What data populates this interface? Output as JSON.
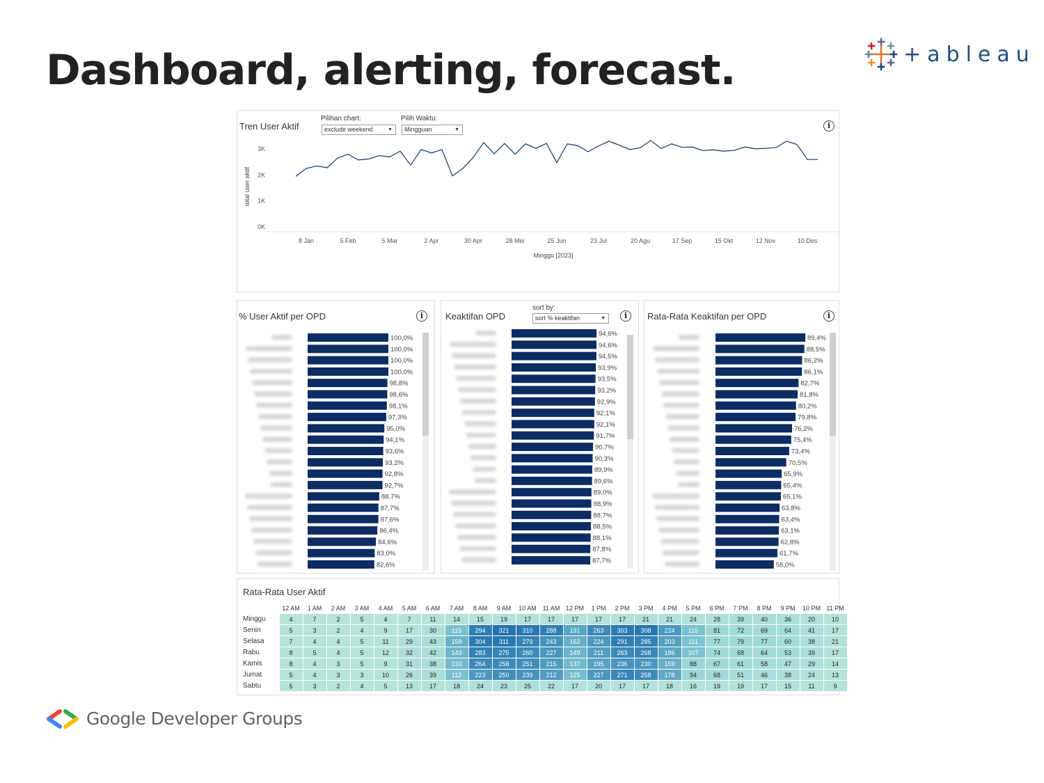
{
  "slide_title": "Dashboard, alerting, forecast.",
  "tableau_logo_text": "+ableau",
  "footer_brand": "Google Developer Groups",
  "colors": {
    "bar": "#0c2c63",
    "line": "#24446d",
    "accent_blue": "#1f4e79"
  },
  "trend": {
    "title": "Tren User Aktif",
    "chart_label": "Pilihan chart:",
    "chart_value": "exclude weekend",
    "time_label": "Pilih Waktu:",
    "time_value": "Mingguan",
    "info_icon": "i"
  },
  "chart_data": [
    {
      "type": "line",
      "title": "Tren User Aktif",
      "xlabel": "Minggu [2023]",
      "ylabel": "total user aktif",
      "yticks": [
        "3K",
        "2K",
        "1K",
        "0K"
      ],
      "ylim": [
        0,
        3300
      ],
      "xticks": [
        "8 Jan",
        "5 Feb",
        "5 Mar",
        "2 Apr",
        "30 Apr",
        "28 Mei",
        "25 Jun",
        "23 Jul",
        "20 Agu",
        "17 Sep",
        "15 Okt",
        "12 Nov",
        "10 Des"
      ],
      "x": [
        "1 Jan",
        "8 Jan",
        "15 Jan",
        "22 Jan",
        "29 Jan",
        "5 Feb",
        "12 Feb",
        "19 Feb",
        "26 Feb",
        "5 Mar",
        "12 Mar",
        "19 Mar",
        "26 Mar",
        "2 Apr",
        "9 Apr",
        "16 Apr",
        "23 Apr",
        "30 Apr",
        "7 Mei",
        "14 Mei",
        "21 Mei",
        "28 Mei",
        "4 Jun",
        "11 Jun",
        "18 Jun",
        "25 Jun",
        "2 Jul",
        "9 Jul",
        "16 Jul",
        "23 Jul",
        "30 Jul",
        "6 Agu",
        "13 Agu",
        "20 Agu",
        "27 Agu",
        "3 Sep",
        "10 Sep",
        "17 Sep",
        "24 Sep",
        "1 Okt",
        "8 Okt",
        "15 Okt",
        "22 Okt",
        "29 Okt",
        "5 Nov",
        "12 Nov",
        "19 Nov",
        "26 Nov",
        "3 Des",
        "10 Des",
        "17 Des"
      ],
      "values": [
        1950,
        2250,
        2350,
        2280,
        2650,
        2800,
        2580,
        2620,
        2750,
        2700,
        2920,
        2380,
        2980,
        2850,
        2980,
        1970,
        2250,
        2680,
        3250,
        2820,
        3220,
        2800,
        3200,
        3030,
        3220,
        2480,
        3200,
        3130,
        2900,
        3120,
        3300,
        3150,
        2980,
        3050,
        3330,
        3020,
        3200,
        3070,
        3080,
        2940,
        2970,
        2920,
        2950,
        3080,
        3010,
        3030,
        3060,
        3300,
        3180,
        2600,
        2600
      ]
    },
    {
      "type": "bar",
      "title": "% User Aktif per OPD",
      "values": [
        100.0,
        100.0,
        100.0,
        100.0,
        98.8,
        98.6,
        98.1,
        97.3,
        95.0,
        94.1,
        93.6,
        93.2,
        92.8,
        92.7,
        88.7,
        87.7,
        87.6,
        86.4,
        84.6,
        83.0,
        82.6
      ],
      "labels": [
        "100,0%",
        "100,0%",
        "100,0%",
        "100,0%",
        "98,8%",
        "98,6%",
        "98,1%",
        "97,3%",
        "95,0%",
        "94,1%",
        "93,6%",
        "93,2%",
        "92,8%",
        "92,7%",
        "88,7%",
        "87,7%",
        "87,6%",
        "86,4%",
        "84,6%",
        "83,0%",
        "82,6%"
      ]
    },
    {
      "type": "bar",
      "title": "Keaktifan OPD",
      "values": [
        94.6,
        94.6,
        94.5,
        93.9,
        93.5,
        93.2,
        92.9,
        92.1,
        92.1,
        91.7,
        90.7,
        90.3,
        89.9,
        89.6,
        89.0,
        88.9,
        88.7,
        88.5,
        88.1,
        87.8,
        87.7
      ],
      "labels": [
        "94,6%",
        "94,6%",
        "94,5%",
        "93,9%",
        "93,5%",
        "93,2%",
        "92,9%",
        "92,1%",
        "92,1%",
        "91,7%",
        "90,7%",
        "90,3%",
        "89,9%",
        "89,6%",
        "89,0%",
        "88,9%",
        "88,7%",
        "88,5%",
        "88,1%",
        "87,8%",
        "87,7%"
      ]
    },
    {
      "type": "bar",
      "title": "Rata-Rata Keaktifan per OPD",
      "values": [
        89.4,
        88.5,
        86.2,
        86.1,
        82.7,
        81.8,
        80.2,
        79.8,
        76.2,
        75.4,
        73.4,
        70.5,
        65.9,
        65.4,
        65.1,
        63.8,
        63.4,
        63.1,
        62.8,
        61.7,
        58.0
      ],
      "labels": [
        "89,4%",
        "88,5%",
        "86,2%",
        "86,1%",
        "82,7%",
        "81,8%",
        "80,2%",
        "79,8%",
        "76,2%",
        "75,4%",
        "73,4%",
        "70,5%",
        "65,9%",
        "65,4%",
        "65,1%",
        "63,8%",
        "63,4%",
        "63,1%",
        "62,8%",
        "61,7%",
        "58,0%"
      ]
    },
    {
      "type": "heatmap",
      "title": "Rata-Rata User Aktif",
      "columns": [
        "12 AM",
        "1 AM",
        "2 AM",
        "3 AM",
        "4 AM",
        "5 AM",
        "6 AM",
        "7 AM",
        "8 AM",
        "9 AM",
        "10 AM",
        "11 AM",
        "12 PM",
        "1 PM",
        "2 PM",
        "3 PM",
        "4 PM",
        "5 PM",
        "6 PM",
        "7 PM",
        "8 PM",
        "9 PM",
        "10 PM",
        "11 PM"
      ],
      "rows": [
        {
          "day": "Minggu",
          "values": [
            4,
            7,
            2,
            5,
            4,
            7,
            11,
            14,
            15,
            19,
            17,
            17,
            17,
            17,
            17,
            21,
            21,
            24,
            28,
            39,
            40,
            36,
            20,
            10
          ]
        },
        {
          "day": "Senin",
          "values": [
            5,
            3,
            2,
            4,
            9,
            17,
            30,
            115,
            294,
            321,
            310,
            288,
            191,
            263,
            303,
            308,
            224,
            115,
            81,
            72,
            69,
            64,
            41,
            17
          ]
        },
        {
          "day": "Selasa",
          "values": [
            7,
            4,
            4,
            5,
            11,
            29,
            43,
            158,
            304,
            311,
            279,
            243,
            162,
            224,
            291,
            285,
            203,
            111,
            77,
            79,
            77,
            60,
            38,
            21
          ]
        },
        {
          "day": "Rabu",
          "values": [
            8,
            5,
            4,
            5,
            12,
            32,
            42,
            143,
            283,
            275,
            260,
            227,
            149,
            211,
            263,
            268,
            186,
            107,
            74,
            68,
            64,
            53,
            39,
            17
          ]
        },
        {
          "day": "Kamis",
          "values": [
            8,
            4,
            3,
            5,
            9,
            31,
            38,
            133,
            264,
            258,
            251,
            215,
            137,
            195,
            236,
            230,
            159,
            88,
            67,
            61,
            58,
            47,
            29,
            14
          ]
        },
        {
          "day": "Jumat",
          "values": [
            5,
            4,
            3,
            3,
            10,
            26,
            39,
            112,
            223,
            250,
            239,
            212,
            125,
            227,
            271,
            258,
            178,
            94,
            68,
            51,
            46,
            38,
            24,
            13
          ]
        },
        {
          "day": "Sabtu",
          "values": [
            5,
            3,
            2,
            4,
            5,
            13,
            17,
            18,
            24,
            23,
            25,
            22,
            17,
            20,
            17,
            17,
            18,
            16,
            19,
            19,
            17,
            15,
            11,
            9
          ]
        }
      ]
    }
  ],
  "opd_panel": {
    "title": "% User Aktif per OPD",
    "info_icon": "i"
  },
  "keaktifan_panel": {
    "title": "Keaktifan OPD",
    "sort_label": "sort by:",
    "sort_value": "sort % keaktifan",
    "info_icon": "i"
  },
  "rata_panel": {
    "title": "Rata-Rata Keaktifan per OPD",
    "info_icon": "i"
  },
  "heat_panel": {
    "title": "Rata-Rata User Aktif"
  }
}
